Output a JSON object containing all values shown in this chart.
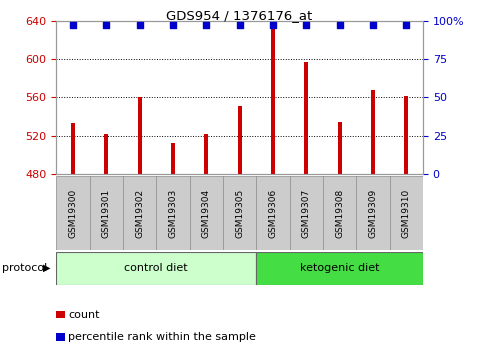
{
  "title": "GDS954 / 1376176_at",
  "samples": [
    "GSM19300",
    "GSM19301",
    "GSM19302",
    "GSM19303",
    "GSM19304",
    "GSM19305",
    "GSM19306",
    "GSM19307",
    "GSM19308",
    "GSM19309",
    "GSM19310"
  ],
  "counts": [
    533,
    522,
    560,
    513,
    522,
    551,
    637,
    597,
    534,
    568,
    562
  ],
  "percentile_ranks": [
    97,
    97,
    97,
    97,
    97,
    97,
    97,
    97,
    97,
    97,
    97
  ],
  "ylim_left": [
    480,
    640
  ],
  "ylim_right": [
    0,
    100
  ],
  "yticks_left": [
    480,
    520,
    560,
    600,
    640
  ],
  "yticks_right": [
    0,
    25,
    50,
    75,
    100
  ],
  "bar_color": "#cc0000",
  "dot_color": "#0000cc",
  "control_diet_label": "control diet",
  "ketogenic_diet_label": "ketogenic diet",
  "protocol_label": "protocol",
  "legend_count": "count",
  "legend_percentile": "percentile rank within the sample",
  "tick_bg_color": "#cccccc",
  "control_bg": "#ccffcc",
  "ketogenic_bg": "#44dd44",
  "left_tick_color": "#cc0000",
  "right_tick_color": "#0000cc",
  "n_control": 6,
  "n_ketogenic": 5
}
